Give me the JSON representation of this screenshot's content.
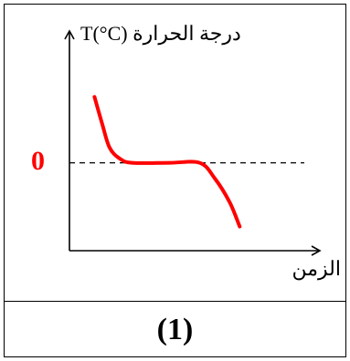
{
  "chart_data": {
    "type": "line",
    "ylabel": "درجة الحرارة T(°C)",
    "xlabel": "الزمن",
    "reference_line": {
      "y": 0,
      "label": "0",
      "style": "dashed"
    },
    "series": [
      {
        "color": "#ff0000",
        "points": [
          {
            "x": 0.0,
            "y": 3.0
          },
          {
            "x": 0.3,
            "y": 1.8
          },
          {
            "x": 0.6,
            "y": 0.7
          },
          {
            "x": 1.0,
            "y": 0.2
          },
          {
            "x": 1.5,
            "y": 0.0
          },
          {
            "x": 3.0,
            "y": 0.0
          },
          {
            "x": 4.2,
            "y": 0.0
          },
          {
            "x": 4.8,
            "y": -0.7
          },
          {
            "x": 5.4,
            "y": -1.8
          },
          {
            "x": 5.8,
            "y": -2.9
          }
        ]
      }
    ],
    "xlim": [
      -1,
      9
    ],
    "ylim": [
      -4,
      6
    ]
  },
  "caption": "(1)",
  "colors": {
    "curve": "#ff0000",
    "zero_label": "#ff0000",
    "axes": "#000000"
  }
}
